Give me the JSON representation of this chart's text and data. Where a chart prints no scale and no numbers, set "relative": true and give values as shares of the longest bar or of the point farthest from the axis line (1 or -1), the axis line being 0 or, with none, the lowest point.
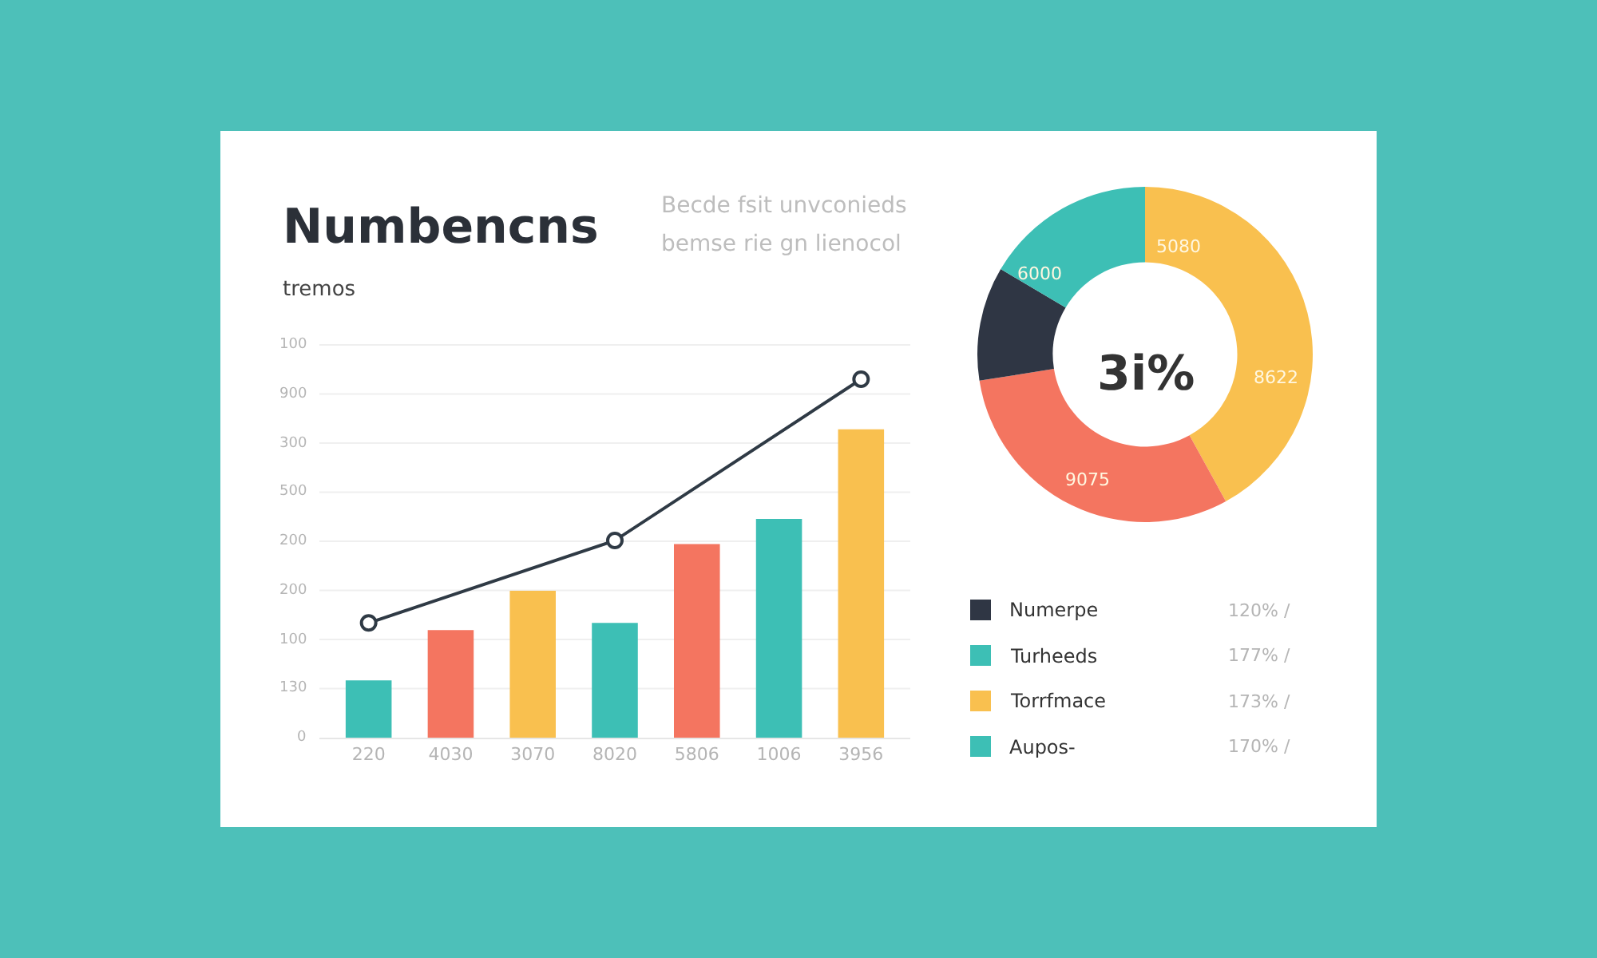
{
  "chart_data": [
    {
      "type": "bar",
      "title": "Numbencns",
      "subtitle": "tremos",
      "annotations": [
        "Becde fsit unvconieds",
        "bemse rie gn lienocol",
        "0",
        "130",
        "100",
        "200",
        "200",
        "500",
        "300",
        "900",
        "100"
      ],
      "categories": [
        "220",
        "4030",
        "3070",
        "8020",
        "5806",
        "1006",
        "3956"
      ],
      "series": [
        {
          "type": "bar",
          "colors": [
            "#3dbfb5",
            "#f47560",
            "#f9c04f",
            "#3dbfb5",
            "#f47560",
            "#3dbfb5",
            "#f9c04f"
          ],
          "values": [
            0.16,
            0.3,
            0.41,
            0.32,
            0.54,
            0.61,
            0.86
          ]
        },
        {
          "type": "line",
          "color": "#2f3a45",
          "values": [
            0.32,
            null,
            null,
            0.55,
            null,
            null,
            1
          ]
        }
      ],
      "relative": true,
      "grid": "y",
      "marker": "circle"
    },
    {
      "type": "donut",
      "categories": [
        null,
        null,
        null,
        null
      ],
      "values": [
        42,
        30.5,
        11,
        16.5
      ],
      "colors": [
        "#f9c04f",
        "#f47560",
        "#2f3644",
        "#3dbfb5"
      ],
      "annotations": [
        "3i%",
        "5080",
        "8622",
        "9075",
        "6000"
      ]
    },
    {
      "type": "other",
      "categories": [
        "Numerpe",
        "Turheeds",
        "Torrfmace",
        "Aupos-"
      ],
      "colors": [
        "#2f3644",
        "#3dbfb5",
        "#f9c04f",
        "#3dbfb5"
      ],
      "annotations": [
        "120% /",
        "177% /",
        "173% /",
        "170% /"
      ]
    }
  ]
}
